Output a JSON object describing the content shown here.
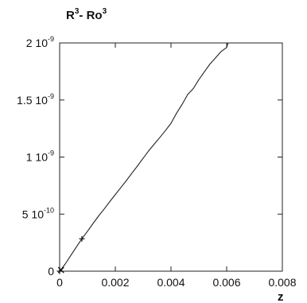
{
  "chart_data": {
    "type": "line",
    "title": "",
    "ylabel": "R³ - Ro³",
    "xlabel": "z",
    "xlim": [
      0,
      0.008
    ],
    "ylim": [
      0,
      2e-09
    ],
    "x_ticks": [
      "0",
      "0.002",
      "0.004",
      "0.006",
      "0.008"
    ],
    "y_ticks": [
      {
        "mantissa": "0",
        "exponent": ""
      },
      {
        "mantissa": "5 10",
        "exponent": "-10"
      },
      {
        "mantissa": "1 10",
        "exponent": "-9"
      },
      {
        "mantissa": "1.5 10",
        "exponent": "-9"
      },
      {
        "mantissa": "2 10",
        "exponent": "-9"
      }
    ],
    "grid": false,
    "legend": "none",
    "series": [
      {
        "color": "#222222",
        "x": [
          0,
          0.0002,
          0.0004,
          0.0006,
          0.0008,
          0.001,
          0.0012,
          0.0014,
          0.0016,
          0.0018,
          0.002,
          0.0022,
          0.0024,
          0.0026,
          0.0028,
          0.003,
          0.0032,
          0.0034,
          0.0036,
          0.0038,
          0.004,
          0.0042,
          0.0044,
          0.0046,
          0.0048,
          0.005,
          0.0052,
          0.0054,
          0.0056,
          0.0058,
          0.006,
          0.00605,
          0.00625
        ],
        "y": [
          0,
          6.3e-11,
          1.38e-10,
          2.12e-10,
          2.84e-10,
          3.5e-10,
          4.18e-10,
          4.84e-10,
          5.45e-10,
          6.1e-10,
          6.72e-10,
          7.33e-10,
          7.95e-10,
          8.6e-10,
          9.23e-10,
          9.9e-10,
          1.055e-09,
          1.114e-09,
          1.172e-09,
          1.232e-09,
          1.296e-09,
          1.385e-09,
          1.462e-09,
          1.548e-09,
          1.6e-09,
          1.678e-09,
          1.748e-09,
          1.815e-09,
          1.87e-09,
          1.925e-09,
          1.96e-09,
          2e-09,
          2e-09
        ]
      }
    ],
    "markers": [
      {
        "x": 0.0008,
        "y": 2.84e-10,
        "symbol": "+"
      },
      {
        "x": 5e-05,
        "y": 1e-11,
        "symbol": "×"
      },
      {
        "x": 0.0,
        "y": 0,
        "symbol": "+"
      }
    ]
  }
}
